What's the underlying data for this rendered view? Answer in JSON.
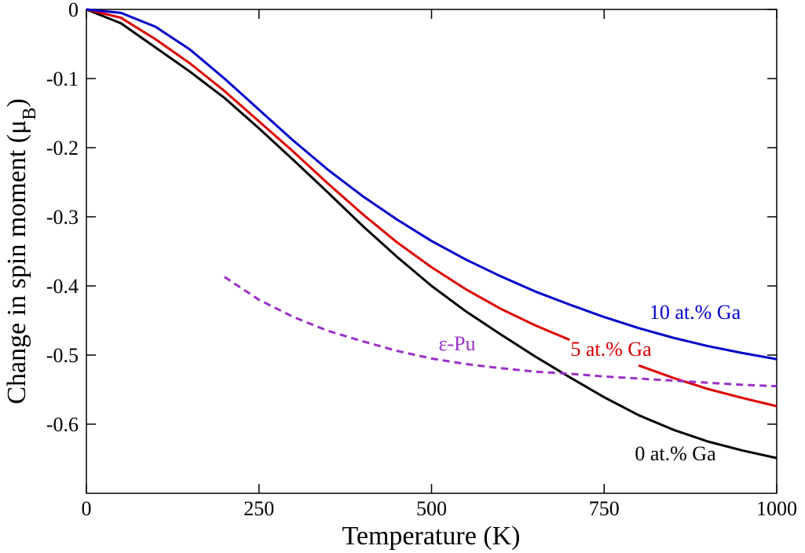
{
  "chart_data": {
    "type": "line",
    "x_label": "Temperature (K)",
    "y_label_parts": [
      "Change in spin moment (μ",
      "B",
      ")"
    ],
    "x": [
      0,
      50,
      100,
      150,
      200,
      250,
      300,
      350,
      400,
      450,
      500,
      550,
      600,
      650,
      700,
      750,
      800,
      850,
      900,
      950,
      1000
    ],
    "series": [
      {
        "name": "0 at.% Ga",
        "color": "#000000",
        "dashed": false,
        "values": [
          0,
          -0.02,
          -0.055,
          -0.09,
          -0.128,
          -0.172,
          -0.218,
          -0.265,
          -0.313,
          -0.358,
          -0.4,
          -0.437,
          -0.47,
          -0.502,
          -0.532,
          -0.561,
          -0.587,
          -0.608,
          -0.625,
          -0.638,
          -0.649
        ]
      },
      {
        "name": "5 at.% Ga",
        "color": "#dd0000",
        "dashed": false,
        "values": [
          0,
          -0.012,
          -0.043,
          -0.078,
          -0.118,
          -0.162,
          -0.206,
          -0.252,
          -0.296,
          -0.337,
          -0.373,
          -0.405,
          -0.433,
          -0.457,
          -0.478,
          null,
          -0.515,
          -0.533,
          -0.549,
          -0.562,
          -0.574
        ]
      },
      {
        "name": "10 at.% Ga",
        "color": "#0000cc",
        "dashed": false,
        "values": [
          0,
          -0.005,
          -0.025,
          -0.058,
          -0.1,
          -0.145,
          -0.19,
          -0.232,
          -0.27,
          -0.304,
          -0.335,
          -0.362,
          -0.386,
          -0.408,
          -0.427,
          -0.445,
          -0.461,
          -0.475,
          -0.487,
          -0.497,
          -0.506
        ]
      },
      {
        "name": "ε-Pu",
        "color": "#9b30c8",
        "dashed": true,
        "values": [
          null,
          null,
          null,
          null,
          -0.387,
          -0.42,
          -0.445,
          -0.465,
          -0.48,
          -0.494,
          -0.505,
          -0.513,
          -0.519,
          -0.524,
          -0.527,
          -0.531,
          -0.534,
          -0.537,
          -0.54,
          -0.543,
          -0.545
        ]
      }
    ],
    "xlim": [
      0,
      1000
    ],
    "xticks": [
      0,
      250,
      500,
      750,
      1000
    ],
    "ylim": [
      -0.7,
      0
    ],
    "yticks": [
      0,
      -0.1,
      -0.2,
      -0.3,
      -0.4,
      -0.5,
      -0.6
    ]
  }
}
